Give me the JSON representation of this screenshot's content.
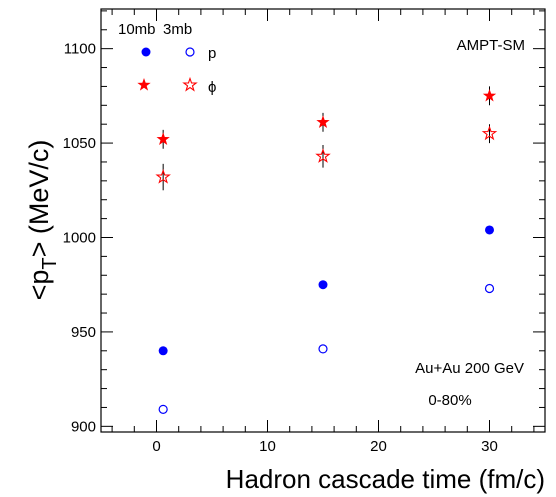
{
  "chart_data": {
    "type": "scatter",
    "xlabel": "Hadron cascade time (fm/c)",
    "ylabel_base": "<p",
    "ylabel_sub": "T",
    "ylabel_end": "> (MeV/c)",
    "xlim": [
      -5,
      35
    ],
    "ylim": [
      897,
      1121
    ],
    "x_ticks": [
      0,
      10,
      20,
      30
    ],
    "y_ticks": [
      900,
      950,
      1000,
      1050,
      1100
    ],
    "x_tick_labels": [
      "0",
      "10",
      "20",
      "30"
    ],
    "y_tick_labels": [
      "900",
      "950",
      "1000",
      "1050",
      "1100"
    ],
    "series": [
      {
        "label": "p",
        "cross_section": "10mb",
        "marker": "filled-circle",
        "color": "#0000ff",
        "x": [
          0.6,
          15,
          30
        ],
        "y": [
          940,
          975,
          1004
        ],
        "err": [
          0,
          0,
          0
        ]
      },
      {
        "label": "p",
        "cross_section": "3mb",
        "marker": "open-circle",
        "color": "#0000ff",
        "x": [
          0.6,
          15,
          30
        ],
        "y": [
          909,
          941,
          973
        ],
        "err": [
          0,
          0,
          0
        ]
      },
      {
        "label": "ϕ",
        "cross_section": "10mb",
        "marker": "filled-star",
        "color": "#ff0000",
        "x": [
          0.6,
          15,
          30
        ],
        "y": [
          1052,
          1061,
          1075
        ],
        "err": [
          5,
          5,
          5
        ]
      },
      {
        "label": "ϕ",
        "cross_section": "3mb",
        "marker": "open-star",
        "color": "#ff0000",
        "x": [
          0.6,
          15,
          30
        ],
        "y": [
          1032,
          1043,
          1055
        ],
        "err": [
          7,
          6,
          5
        ]
      }
    ],
    "legend": {
      "header_10mb": "10mb",
      "header_3mb": "3mb",
      "label_p": "p",
      "label_phi": "ϕ"
    },
    "annotations": {
      "model": "AMPT-SM",
      "system": "Au+Au 200 GeV",
      "centrality": "0-80%"
    }
  }
}
